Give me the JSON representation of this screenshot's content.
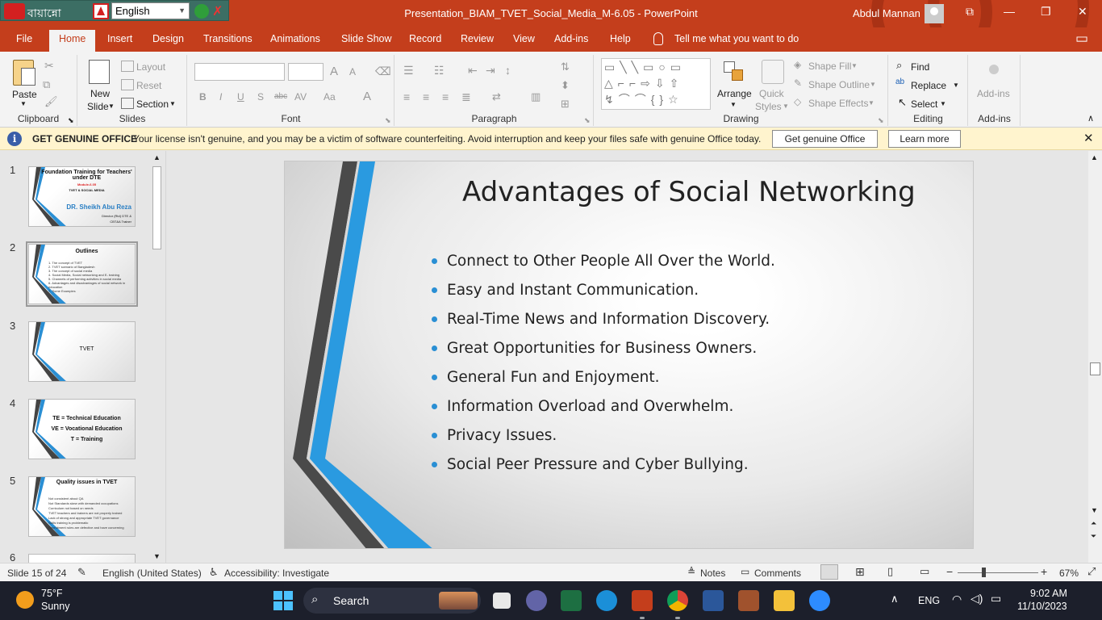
{
  "ime_toolbar": {
    "bangla_label": "বায়ান্নো",
    "language": "English"
  },
  "window": {
    "title": "Presentation_BIAM_TVET_Social_Media_M-6.05  -  PowerPoint",
    "user": "Abdul Mannan"
  },
  "tabs": [
    "File",
    "Home",
    "Insert",
    "Design",
    "Transitions",
    "Animations",
    "Slide Show",
    "Record",
    "Review",
    "View",
    "Add-ins",
    "Help"
  ],
  "tell_me": "Tell me what you want to do",
  "ribbon": {
    "clipboard": {
      "paste": "Paste",
      "label": "Clipboard"
    },
    "slides": {
      "new_slide_1": "New",
      "new_slide_2": "Slide",
      "layout": "Layout",
      "reset": "Reset",
      "section": "Section",
      "label": "Slides"
    },
    "font": {
      "label": "Font",
      "bold": "B",
      "italic": "I",
      "underline": "U",
      "shadow": "S",
      "strike": "abc",
      "spacing": "AV",
      "case": "Aa",
      "grow": "A",
      "shrink": "A",
      "color": "A"
    },
    "paragraph": {
      "label": "Paragraph"
    },
    "drawing": {
      "arrange": "Arrange",
      "quick_styles_1": "Quick",
      "quick_styles_2": "Styles",
      "shape_fill": "Shape Fill",
      "shape_outline": "Shape Outline",
      "shape_effects": "Shape Effects",
      "label": "Drawing"
    },
    "editing": {
      "find": "Find",
      "replace": "Replace",
      "select": "Select",
      "label": "Editing"
    },
    "addins": {
      "button": "Add-ins",
      "label": "Add-ins"
    }
  },
  "notice": {
    "title": "GET GENUINE OFFICE",
    "message": "Your license isn't genuine, and you may be a victim of software counterfeiting. Avoid interruption and keep your files safe with genuine Office today.",
    "btn_genuine": "Get genuine Office",
    "btn_learn": "Learn more"
  },
  "thumbnails": [
    {
      "num": "1",
      "title": "Foundation Training for Teachers' under DTE",
      "sub": "Module-6.05",
      "sub2": "TVET & SOCIAL MEDIA",
      "author": "DR. Sheikh Abu Reza",
      "footer1": "Director (Rtd) DTE &",
      "footer2": "CBT&A Trainer"
    },
    {
      "num": "2",
      "title": "Outlines",
      "lines": [
        "1. The concept of TVET",
        "2. TVET scenario of Bangladesh",
        "3. The concept of social media",
        "4. Social Media, Social networking and E- training",
        "5. Channels of performing activities in social media",
        "6. Advantages and disadvantages of social network in education",
        "7. Some Examples"
      ]
    },
    {
      "num": "3",
      "title": "TVET"
    },
    {
      "num": "4",
      "line1": "TE = Technical Education",
      "line2": "VE = Vocational Education",
      "line3": "T = Training"
    },
    {
      "num": "5",
      "title": "Quality issues in TVET",
      "lines": [
        "Not consistent about QA",
        "Not Standards skew with demanded occupations",
        "Curriculum not based on needs",
        "TVET teachers and trainers are not properly trained",
        "Lack of strong and appropriate TVET governance",
        "Skills training is problematic",
        "Recruitment rules are defective and have concerning"
      ]
    },
    {
      "num": "6"
    }
  ],
  "slide": {
    "title": "Advantages of Social Networking",
    "bullets": [
      "Connect to Other People All Over the World.",
      "Easy and Instant Communication.",
      "Real-Time News and Information Discovery.",
      "Great Opportunities for Business Owners.",
      "General Fun and Enjoyment.",
      "Information Overload and Overwhelm.",
      "Privacy Issues.",
      "Social Peer Pressure and Cyber Bullying."
    ]
  },
  "status": {
    "slide_info": "Slide 15 of 24",
    "language": "English (United States)",
    "accessibility": "Accessibility: Investigate",
    "notes": "Notes",
    "comments": "Comments",
    "zoom": "67%",
    "zoom_level": 0.67
  },
  "taskbar": {
    "temp": "75°F",
    "condition": "Sunny",
    "search": "Search",
    "lang": "ENG",
    "time": "9:02 AM",
    "date": "11/10/2023"
  },
  "colors": {
    "accent": "#c43e1c",
    "bullet": "#2a8fd4"
  }
}
